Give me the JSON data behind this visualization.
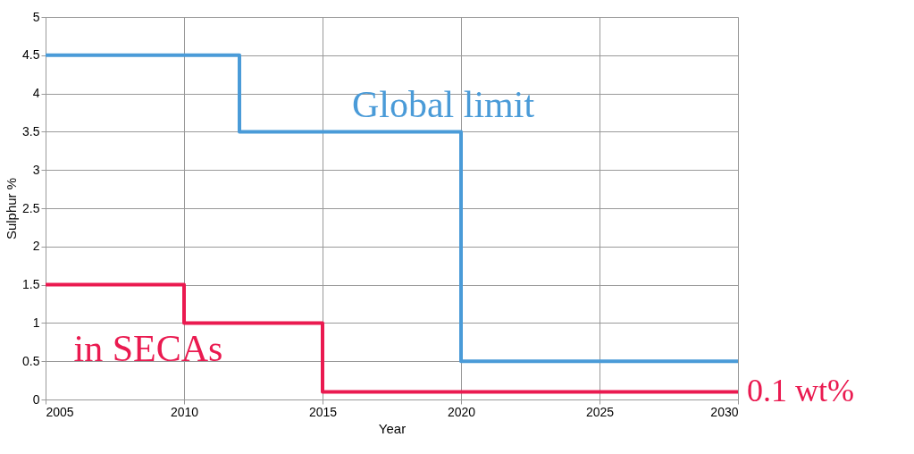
{
  "chart_data": {
    "type": "step",
    "xlabel": "Year",
    "ylabel": "Sulphur %",
    "series": [
      {
        "name": "Global limit",
        "color": "#4a9bd8",
        "x": [
          2005,
          2012,
          2020,
          2030
        ],
        "values": [
          4.5,
          3.5,
          0.5,
          0.5
        ]
      },
      {
        "name": "in SECAs",
        "color": "#ea1a50",
        "x": [
          2005,
          2010,
          2015,
          2030
        ],
        "values": [
          1.5,
          1,
          0.1,
          0.1
        ]
      }
    ],
    "annotations": [
      {
        "text": "0.1 wt%",
        "x": 2030,
        "y": 0.1
      }
    ],
    "xlim": [
      2005,
      2030
    ],
    "xticks": [
      2005,
      2010,
      2015,
      2020,
      2025,
      2030
    ],
    "ylim": [
      0,
      5
    ],
    "yticks": [
      0,
      0.5,
      1,
      1.5,
      2,
      2.5,
      3,
      3.5,
      4,
      4.5,
      5
    ],
    "grid": true,
    "legend": false
  }
}
